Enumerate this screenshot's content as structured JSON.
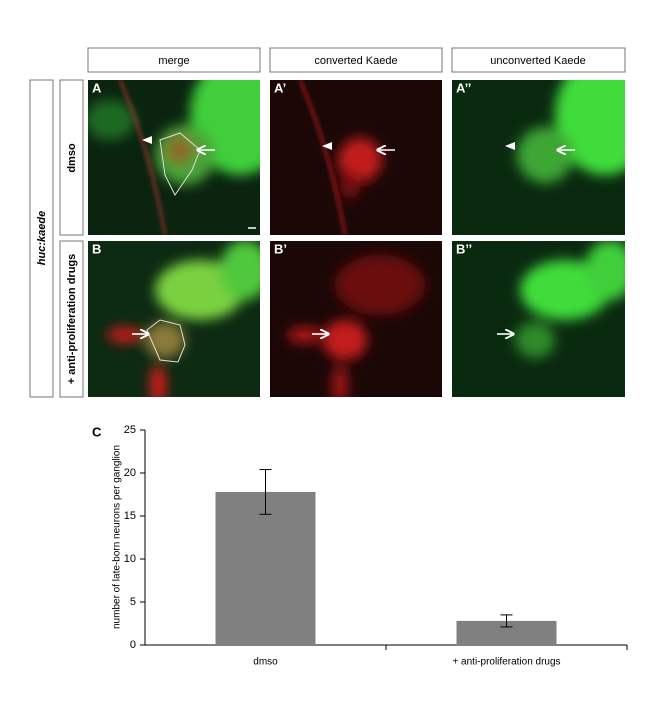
{
  "figure": {
    "column_headers": [
      "merge",
      "converted Kaede",
      "unconverted Kaede"
    ],
    "row_group_label": "huc:kaede",
    "row_labels": [
      "dmso",
      "+ anti-proliferation drugs"
    ],
    "panel_labels": [
      [
        "A",
        "A’",
        "A’’"
      ],
      [
        "B",
        "B’",
        "B’’"
      ]
    ]
  },
  "chart_data": {
    "type": "bar",
    "panel_label": "C",
    "y_label": "number of late-born neurons per ganglion",
    "categories": [
      "dmso",
      "+ anti-proliferation drugs"
    ],
    "values": [
      17.8,
      2.8
    ],
    "errors": [
      2.6,
      0.7
    ],
    "color": "#808080",
    "ylim": [
      0,
      25
    ],
    "yticks": [
      0,
      5,
      10,
      15,
      20,
      25
    ]
  }
}
